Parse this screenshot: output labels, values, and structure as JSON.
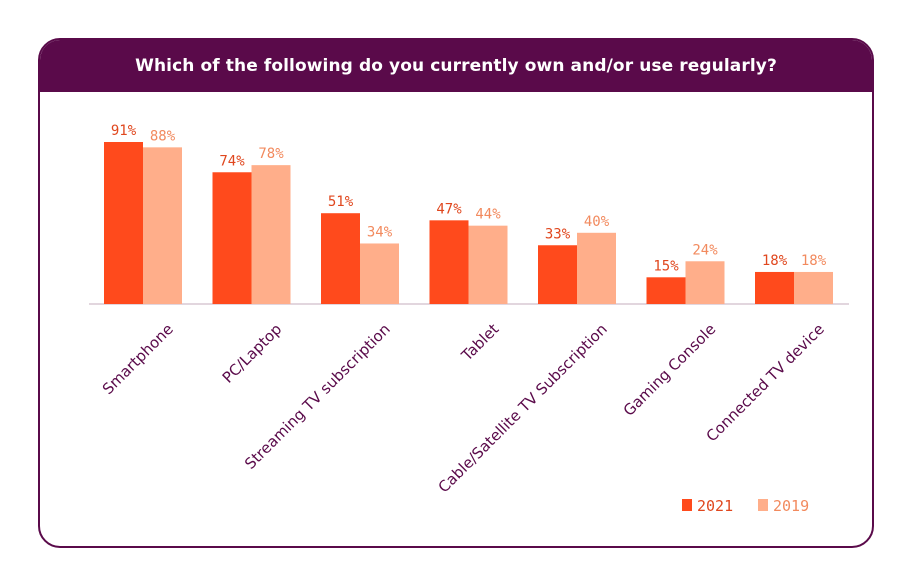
{
  "chart_data": {
    "type": "bar",
    "title": "Which of the following do you currently own and/or use regularly?",
    "categories": [
      "Smartphone",
      "PC/Laptop",
      "Streaming TV subscription",
      "Tablet",
      "Cable/Satellite TV Subscription",
      "Gaming Console",
      "Connected TV device"
    ],
    "series": [
      {
        "name": "2021",
        "values": [
          91,
          74,
          51,
          47,
          33,
          15,
          18
        ],
        "labels": [
          "91%",
          "74%",
          "51%",
          "47%",
          "33%",
          "15%",
          "18%"
        ],
        "color": "#ff4a1c",
        "label_color": "#e0471e"
      },
      {
        "name": "2019",
        "values": [
          88,
          78,
          34,
          44,
          40,
          24,
          18
        ],
        "labels": [
          "88%",
          "78%",
          "34%",
          "44%",
          "40%",
          "24%",
          "18%"
        ],
        "color": "#ffae8a",
        "label_color": "#f28a5e"
      }
    ],
    "ylim": [
      0,
      91
    ],
    "xlabel": "",
    "ylabel": "",
    "legend_position": "bottom-right",
    "category_label_color": "#5a0a4a",
    "axis_color": "#d9c9d3"
  }
}
